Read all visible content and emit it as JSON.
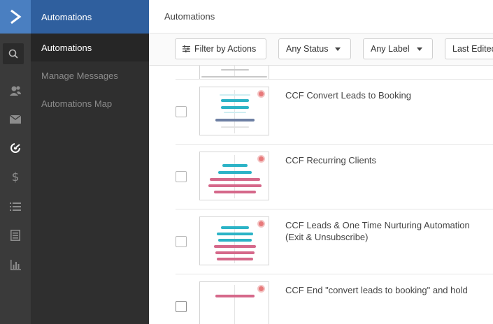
{
  "app": {
    "section_title": "Automations",
    "page_title": "Automations"
  },
  "rail": {
    "icons": [
      "logo-chevron-icon",
      "search-icon",
      "contacts-icon",
      "envelope-icon",
      "automation-icon",
      "dollar-icon",
      "list-icon",
      "forms-icon",
      "reports-icon"
    ]
  },
  "subnav": {
    "items": [
      {
        "label": "Automations",
        "active": true
      },
      {
        "label": "Manage Messages",
        "active": false
      },
      {
        "label": "Automations Map",
        "active": false
      }
    ]
  },
  "toolbar": {
    "filter_label": "Filter by Actions",
    "status_label": "Any Status",
    "label_label": "Any Label",
    "sort_label": "Last Edited"
  },
  "rows": [
    {
      "title": "CCF Convert Leads to Booking",
      "checked": false
    },
    {
      "title": "CCF Recurring Clients",
      "checked": false
    },
    {
      "title": "CCF Leads & One Time Nurturing Automation (Exit & Unsubscribe)",
      "checked": false
    },
    {
      "title": "CCF End \"convert leads to booking\" and hold",
      "checked": false
    }
  ],
  "colors": {
    "accent_blue": "#4a7fc1",
    "teal": "#2bb3c6",
    "pink": "#d5688a",
    "slate": "#6d7fa3",
    "status_dot": "#e8797a"
  }
}
